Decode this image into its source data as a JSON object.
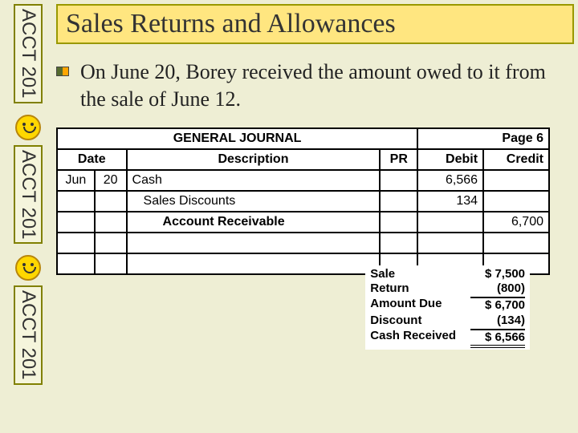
{
  "sidebar": {
    "label": "ACCT 201"
  },
  "title": "Sales Returns and Allowances",
  "body": "On June 20, Borey received the amount owed to it from the sale of June 12.",
  "journal": {
    "header_title": "GENERAL JOURNAL",
    "page_label": "Page 6",
    "columns": {
      "date": "Date",
      "desc": "Description",
      "pr": "PR",
      "debit": "Debit",
      "credit": "Credit"
    },
    "rows": [
      {
        "month": "Jun",
        "day": "20",
        "desc": "Cash",
        "pr": "",
        "debit": "6,566",
        "credit": "",
        "indent": 0
      },
      {
        "month": "",
        "day": "",
        "desc": "Sales Discounts",
        "pr": "",
        "debit": "134",
        "credit": "",
        "indent": 1
      },
      {
        "month": "",
        "day": "",
        "desc": "Account Receivable",
        "pr": "",
        "debit": "",
        "credit": "6,700",
        "indent": 2
      },
      {
        "month": "",
        "day": "",
        "desc": "",
        "pr": "",
        "debit": "",
        "credit": "",
        "indent": 0
      },
      {
        "month": "",
        "day": "",
        "desc": "",
        "pr": "",
        "debit": "",
        "credit": "",
        "indent": 0
      }
    ]
  },
  "calc": [
    {
      "label": "Sale",
      "value": "$  7,500"
    },
    {
      "label": "Return",
      "value": "(800)"
    },
    {
      "label": "Amount Due",
      "value": "$  6,700"
    },
    {
      "label": "Discount",
      "value": "(134)"
    },
    {
      "label": "Cash Received",
      "value": "$  6,566"
    }
  ],
  "colors": {
    "background": "#eeeed4",
    "title_bg": "#ffe680",
    "title_border": "#999900",
    "sidebar_border": "#808000",
    "smiley_fill": "#ffd700"
  }
}
